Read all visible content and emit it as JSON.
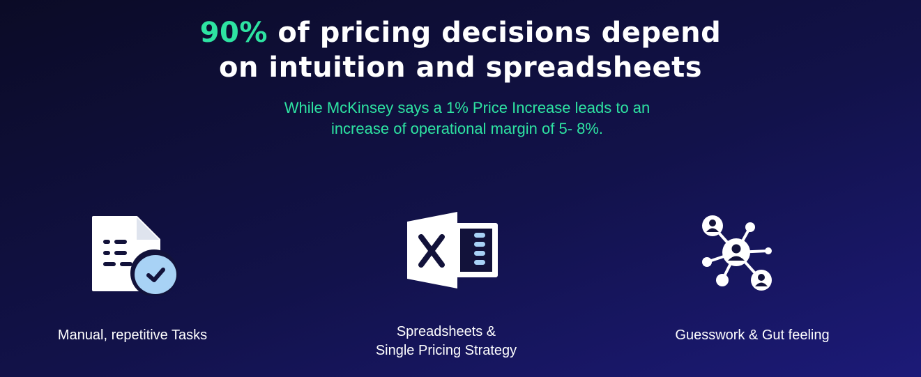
{
  "headline": {
    "accent": "90%",
    "line1_rest": " of pricing decisions depend",
    "line2": "on intuition and spreadsheets"
  },
  "subline": {
    "line1": "While McKinsey says a 1% Price Increase leads to an",
    "line2": "increase of operational margin of 5- 8%."
  },
  "features": [
    {
      "icon": "document-check-icon",
      "label_lines": [
        "Manual, repetitive Tasks"
      ]
    },
    {
      "icon": "excel-icon",
      "label_lines": [
        "Spreadsheets &",
        "Single Pricing Strategy"
      ]
    },
    {
      "icon": "network-people-icon",
      "label_lines": [
        "Guesswork & Gut feeling"
      ]
    }
  ],
  "colors": {
    "accent": "#2ee3a2",
    "background_top": "#0b0b26",
    "background_bottom": "#1c1a78",
    "icon_light_blue": "#a8d2f5",
    "icon_dark": "#12123a"
  }
}
